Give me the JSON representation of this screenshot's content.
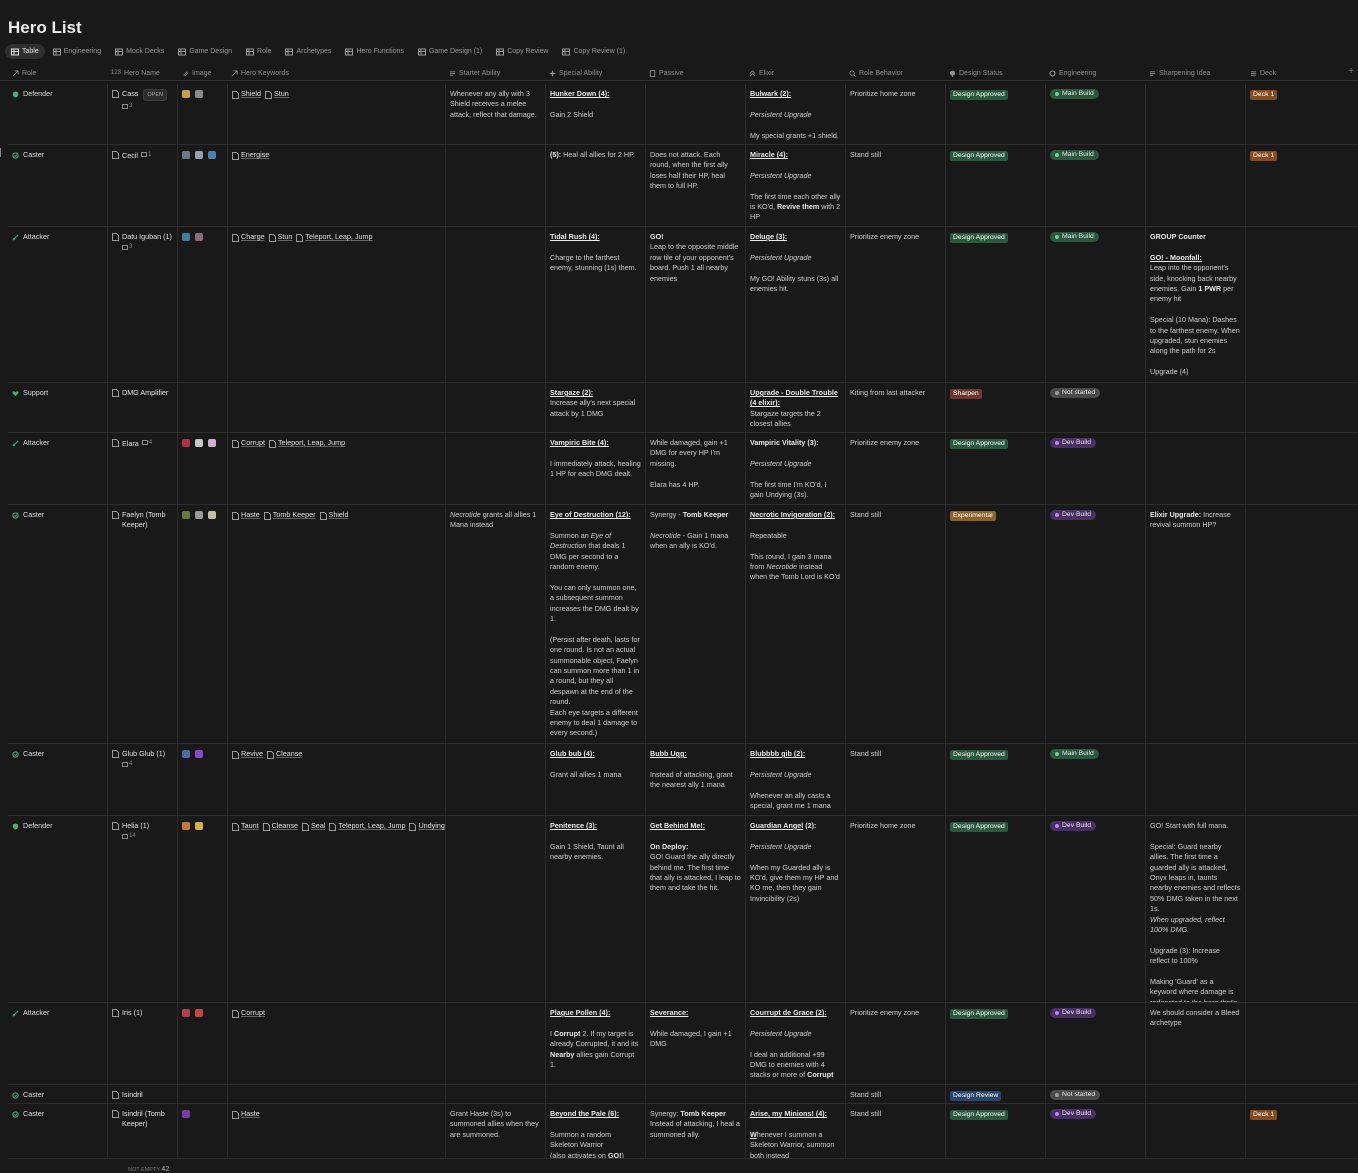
{
  "page": {
    "title": "Hero List"
  },
  "tabs": [
    {
      "label": "Table",
      "active": true
    },
    {
      "label": "Engineering"
    },
    {
      "label": "Mock Decks"
    },
    {
      "label": "Game Design"
    },
    {
      "label": "Role"
    },
    {
      "label": "Archetypes"
    },
    {
      "label": "Hero Functions"
    },
    {
      "label": "Game Design (1)"
    },
    {
      "label": "Copy Review"
    },
    {
      "label": "Copy Review (1)"
    }
  ],
  "columns": {
    "role": "Role",
    "hero_name": "Hero Name",
    "image": "Image",
    "hero_keywords": "Hero Keywords",
    "starter_ability": "Starter Ability",
    "special_ability": "Special Ability",
    "passive": "Passive",
    "elixir": "Elixir",
    "role_behavior": "Role Behavior",
    "design_status": "Design Status",
    "engineering": "Engineering",
    "sharpening_idea": "Sharpening Idea",
    "deck": "Deck",
    "add": "+"
  },
  "rows": [
    {
      "role": "Defender",
      "name_part1": "Cass",
      "open_label": "OPEN",
      "comments": "3",
      "images": [
        "#c9a04a",
        "#8a8a8a"
      ],
      "keywords": [
        "Shield",
        "Stun"
      ],
      "starter": "<p>Whenever any ally with 3 Shield receives a melee attack, reflect that damage.</p>",
      "special": "<p><b><u>Hunker Down (4):</u></b></p><p>Gain 2 Shield</p>",
      "passive": "",
      "elixir": "<p><b><u>Bulwark (2):</u></b></p><p><i>Persistent Upgrade</i></p><p>My special grants +1 shield.</p>",
      "behavior": "Prioritize home zone",
      "status": "Design Approved",
      "status_color": "green",
      "eng": "Main Build",
      "eng_color": "green",
      "sharpen": "",
      "deck": "Deck 1"
    },
    {
      "role": "Caster",
      "name": "Cecil",
      "comments": "1",
      "images": [
        "#6d7a8a",
        "#9aa0a8",
        "#4f7fa8"
      ],
      "keywords": [
        "Energise"
      ],
      "starter": "",
      "special": "<p><b>(5):</b> Heal all allies for 2 HP.</p>",
      "passive": "<p>Does not attack. Each round, when the first ally loses half their HP, heal them to full HP.</p>",
      "elixir": "<p><b><u>Miracle (4):</u></b></p><p><i>Persistent Upgrade</i></p><p>The first time each other ally is KO'd, <b>Revive them</b> with 2 HP</p>",
      "behavior": "Stand still",
      "status": "Design Approved",
      "status_color": "green",
      "eng": "Main Build",
      "eng_color": "green",
      "sharpen": "",
      "deck": "Deck 1"
    },
    {
      "role": "Attacker",
      "name": "Datu Iguban (1)",
      "comments": "3",
      "images": [
        "#3f7f9a",
        "#8a6f7a"
      ],
      "keywords": [
        "Charge",
        "Stun",
        "Teleport, Leap, Jump"
      ],
      "starter": "",
      "special": "<p><b><u>Tidal Rush (4):</u></b></p><p>Charge to the farthest enemy, stunning (1s) them.</p>",
      "passive": "<b>GO!</b><br>Leap to the opposite middle row tile of your opponent's board. Push 1 all nearby enemies",
      "elixir": "<p><b><u>Deluge (3):</u></b></p><p><i>Persistent Upgrade</i></p><p>My GO! Ability stuns (3s) all enemies hit.</p>",
      "behavior": "Prioritize enemy zone",
      "status": "Design Approved",
      "status_color": "green",
      "eng": "Main Build",
      "eng_color": "green",
      "sharpen": "<p><b>GROUP Counter</b></p><p><b><u>GO! - Moonfall:</u></b><br>Leap into the opponent's side, knocking back nearby enemies. Gain <b>1 PWR</b> per enemy hit</p><p>Special (10 Mana): Dashes to the farthest enemy. When upgraded, stun enemies along the path for 2s</p><p>Upgrade (4)</p>",
      "deck": ""
    },
    {
      "role": "Support",
      "name": "DMG Amplifier",
      "comments": "",
      "images": [],
      "keywords": [],
      "starter": "",
      "special": "<p><b><u>Stargaze (2):</u></b><br>Increase ally's next special attack by 1 DMG</p>",
      "passive": "",
      "elixir": "<b><u>Upgrade - Double Trouble (4 elixir):</u></b><br>Stargaze targets the 2 closest allies",
      "behavior": "Kiting from last attacker",
      "status": "Sharpen",
      "status_color": "red",
      "eng": "Not started",
      "eng_color": "gray",
      "sharpen": "",
      "deck": ""
    },
    {
      "role": "Attacker",
      "name": "Elara",
      "comments": "4",
      "images": [
        "#b03048",
        "#c8c8c8",
        "#d0b0d0"
      ],
      "keywords": [
        "Corrupt",
        "Teleport, Leap, Jump"
      ],
      "starter": "",
      "special": "<p><b><u>Vampiric Bite (4):</u></b></p><p>I immediately attack, healing 1 HP for each DMG dealt.</p>",
      "passive": "<p>While damaged, gain +1 DMG for every HP I'm missing.</p><p>Elara has 4 HP.</p>",
      "elixir": "<p><b>Vampiric Vitality (3):</b></p><p><i>Persistent Upgrade</i></p><p>The first time I'm KO'd, I gain Undying (3s).</p>",
      "behavior": "Prioritize enemy zone",
      "status": "Design Approved",
      "status_color": "green",
      "eng": "Dev Build",
      "eng_color": "purple",
      "sharpen": "",
      "deck": ""
    },
    {
      "role": "Caster",
      "name": "Faelyn (Tomb Keeper)",
      "comments": "",
      "images": [
        "#6a7a3a",
        "#9a9a9a",
        "#c0c0a0"
      ],
      "keywords": [
        "Haste",
        "Tomb Keeper",
        "Shield"
      ],
      "starter": "<i>Necrotide</i> grants all allies 1 Mana instead",
      "special": "<p><b><u>Eye of Destruction (12):</u></b></p><p>Summon an <i>Eye of Destruction</i> that deals 1 DMG per second to a random enemy.</p><p>You can only summon one, a subsequent summon increases the DMG dealt by 1.</p><p>(Persist after death, lasts for one round. Is not an actual summonable object, Faelyn can summon more than 1 in a round, but they all despawn at the end of the round.<br>Each eye targets a different enemy to deal 1 damage to every second.)</p>",
      "passive": "<p>Synergy - <b>Tomb Keeper</b></p><p><i>Necrotide</i> - Gain 1 mana when an ally is KO'd.</p>",
      "elixir": "<p><b><u>Necrotic Invigoration (2):</u></b></p><p>Repeatable</p><p>This round, I gain 3 mana from <i>Necrotide</i> instead when the Tomb Lord is KO'd</p>",
      "behavior": "Stand still",
      "status": "Experimental",
      "status_color": "yellow",
      "eng": "Dev Build",
      "eng_color": "purple",
      "sharpen": "<b>Elixir Upgrade:</b> Increase revival summon HP?",
      "deck": ""
    },
    {
      "role": "Caster",
      "name": "Glub Glub (1)",
      "comments": "4",
      "images": [
        "#4a6aa8",
        "#8a4ac8"
      ],
      "keywords": [
        "Revive",
        "Cleanse"
      ],
      "starter": "",
      "special": "<p><b><u>Glub bub (4):</u></b></p><p>Grant all allies 1 mana</p>",
      "passive": "<p><b><u>Bubb Ugg:</u></b></p><p>Instead of attacking, grant the nearest ally 1 mana</p>",
      "elixir": "<p><b><u>Blubbbb gib (2):</u></b></p><p><i>Persistent Upgrade</i></p><p>Whenever an ally casts a special, grant me 1 mana</p>",
      "behavior": "Stand still",
      "status": "Design Approved",
      "status_color": "green",
      "eng": "Main Build",
      "eng_color": "green",
      "sharpen": "",
      "deck": ""
    },
    {
      "role": "Defender",
      "name": "Helia (1)",
      "comments": "14",
      "images": [
        "#c87a3a",
        "#d8b040"
      ],
      "keywords": [
        "Taunt",
        "Cleanse",
        "Seal",
        "Teleport, Leap, Jump",
        "Undying"
      ],
      "starter": "",
      "special": "<p><b><u>Penitence (3):</u></b></p><p>Gain 1 Shield, Taunt all nearby enemies.</p>",
      "passive": "<p><b><u>Get Behind Me!:</u></b></p><p><b>On Deploy:</b><br>GO! Guard the ally directly behind me. The first time that ally is attacked, I leap to them and take the hit.</p>",
      "elixir": "<p><b><u>Guardian Angel</u> (2):</b></p><p><i>Persistent Upgrade</i></p><p>When my Guarded ally is KO'd, give them my HP and KO me, then they gain Invincibility (2s)</p>",
      "behavior": "Prioritize home zone",
      "status": "Design Approved",
      "status_color": "green",
      "eng": "Dev Build",
      "eng_color": "purple",
      "sharpen": "<p>GO! Start with full mana.</p><p>Special: Guard nearby allies. The first time a guarded ally is attacked, Onyx leaps in, taunts nearby enemies and reflects 50% DMG taken in the next 1s.<br><i>When upgraded, reflect 100% DMG.</i></p><p>Upgrade (3): Increase reflect to 100%</p><p>Making 'Guard' as a keyword where damage is redirected to the hero that's guarding.</p>",
      "deck": ""
    },
    {
      "role": "Attacker",
      "name": "Iris (1)",
      "comments": "",
      "images": [
        "#b04050",
        "#c04848"
      ],
      "keywords": [
        "Corrupt"
      ],
      "starter": "",
      "special": "<p><b><u>Plague Pollen (4):</u></b></p><p>I <b>Corrupt</b> 2. If my target is already Corrupted, it and its <b>Nearby</b> allies gain Corrupt 1.</p>",
      "passive": "<p><b><u>Severance:</u></b></p><p>While damaged, I gain +1 DMG</p>",
      "elixir": "<p><b><u>Courrupt de Grace (2):</u></b></p><p><i>Persistent Upgrade</i></p><p>I deal an additional +99 DMG to enemies with 4 stacks or more of <b>Corrupt</b></p>",
      "behavior": "Prioritize enemy zone",
      "status": "Design Approved",
      "status_color": "green",
      "eng": "Dev Build",
      "eng_color": "purple",
      "sharpen": "We should consider a Bleed archetype",
      "deck": ""
    },
    {
      "role": "Caster",
      "name": "Isindril",
      "comments": "",
      "images": [],
      "keywords": [],
      "starter": "",
      "special": "",
      "passive": "",
      "elixir": "",
      "behavior": "Stand still",
      "status": "Design Review",
      "status_color": "blue",
      "eng": "Not started",
      "eng_color": "gray",
      "sharpen": "",
      "deck": ""
    },
    {
      "role": "Caster",
      "name": "Isindril (Tomb Keeper)",
      "comments": "",
      "images": [
        "#7a3aa8"
      ],
      "keywords": [
        "Haste"
      ],
      "starter": "Grant Haste (3s) to summoned allies when they are summoned.",
      "special": "<p><b><u>Beyond the Pale (6):</u></b></p><p>Summon a random Skeleton Warrior<br>(also activates on <b>GO!</b>)</p>",
      "passive": "Synergy: <b>Tomb Keeper</b><br>Instead of attacking, I heal a summoned ally.",
      "elixir": "<p><b><u>Arise, my Minions! (4):</u></b></p><p><u><b>W</b></u>henever I summon a Skeleton Warrior, summon both instead</p>",
      "behavior": "Stand still",
      "status": "Design Approved",
      "status_color": "green",
      "eng": "Dev Build",
      "eng_color": "purple",
      "sharpen": "",
      "deck": "Deck 1"
    }
  ],
  "footer": {
    "label": "NOT EMPTY",
    "count": "42"
  }
}
